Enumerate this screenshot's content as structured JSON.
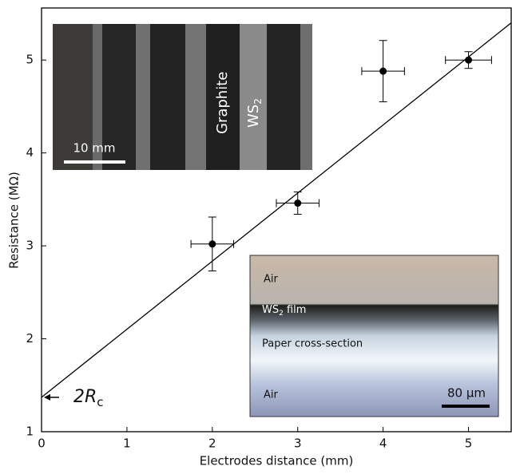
{
  "chart_data": {
    "type": "errorbar",
    "xlabel": "Electrodes distance (mm)",
    "ylabel": "Resistance (MΩ)",
    "xlim": [
      0,
      5.5
    ],
    "ylim": [
      1,
      5.56
    ],
    "xticks": [
      0,
      1,
      2,
      3,
      4,
      5
    ],
    "yticks": [
      1,
      2,
      3,
      4,
      5
    ],
    "series": [
      {
        "color": "#000000",
        "x": [
          2,
          3,
          4,
          5
        ],
        "values": [
          3.02,
          3.46,
          4.88,
          5.0
        ],
        "xerr": [
          0.25,
          0.25,
          0.25,
          0.27
        ],
        "yerr": [
          0.29,
          0.12,
          0.33,
          0.09
        ]
      },
      {
        "color": "#000000",
        "x": [
          0,
          5.5
        ],
        "values": [
          1.37,
          5.4
        ]
      }
    ],
    "annotation": {
      "text": "2R",
      "subscript": "c",
      "x": 0,
      "y": 1.37
    },
    "inset_photo": {
      "label_graphite": "Graphite",
      "label_ws": "WS",
      "label_ws_sub": "2",
      "scale": "10 mm"
    },
    "inset_section": {
      "air_top": "Air",
      "film": "WS",
      "film_sub": "2",
      "film_rest": " film",
      "paper": "Paper cross-section",
      "air_bottom": "Air",
      "scale": "80 µm"
    }
  }
}
